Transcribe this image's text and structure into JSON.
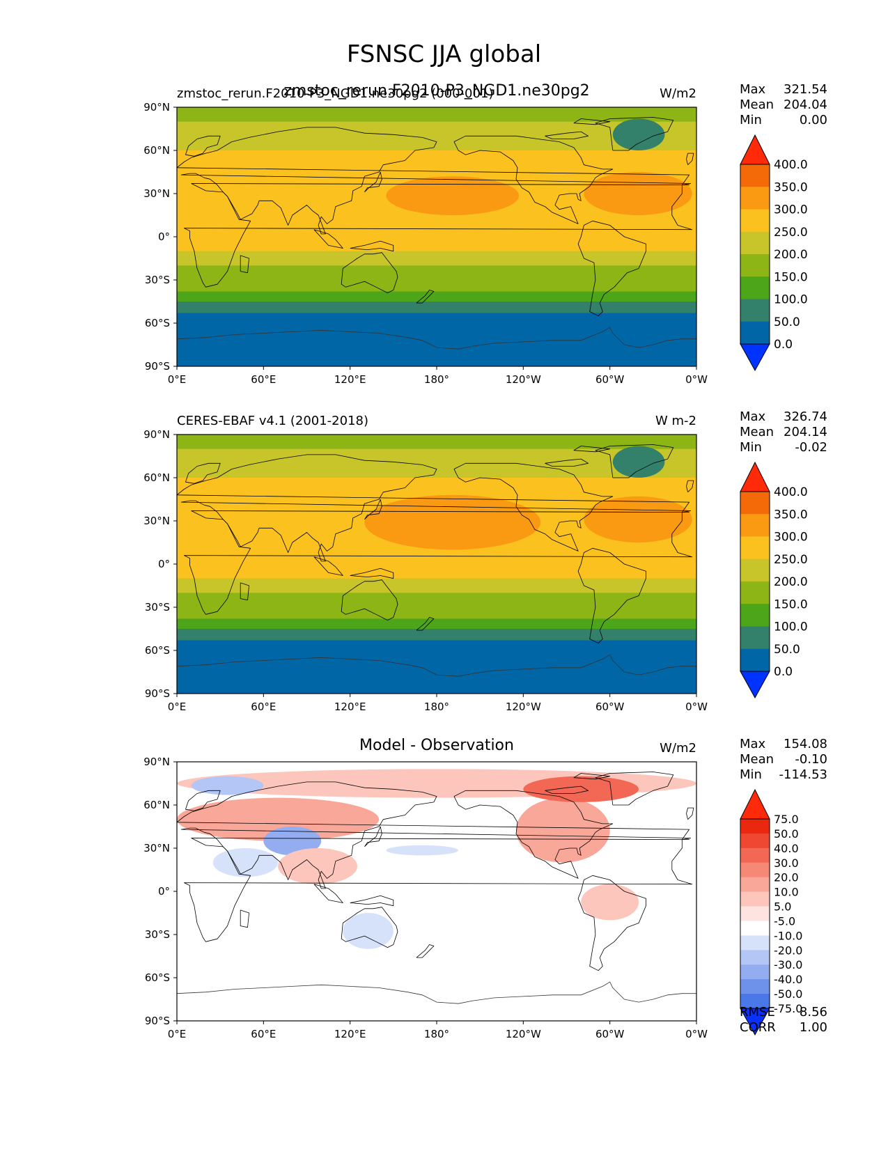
{
  "figure": {
    "title": "FSNSC JJA global"
  },
  "colors": {
    "field_levels": [
      "#0033ff",
      "#0066a6",
      "#33806b",
      "#4da619",
      "#8db515",
      "#c7c52a",
      "#fbc11f",
      "#fa9912",
      "#f56a08",
      "#ff2a0a"
    ],
    "diff_levels": [
      "#0a30ff",
      "#2654f2",
      "#4a78e8",
      "#6e92ea",
      "#93adf0",
      "#b4c6f5",
      "#d6e1fa",
      "#ffffff",
      "#fde4e0",
      "#fcc6bc",
      "#f9a798",
      "#f68876",
      "#f26855",
      "#ee4832",
      "#e9280f",
      "#ff2a0a"
    ],
    "coastline": "#000000",
    "antarctic_line": "#333333"
  },
  "axes": {
    "lat_ticks": [
      "90°N",
      "60°N",
      "30°N",
      "0°",
      "30°S",
      "60°S",
      "90°S"
    ],
    "lon_ticks": [
      "0°E",
      "60°E",
      "120°E",
      "180°",
      "120°W",
      "60°W",
      "0°W"
    ]
  },
  "panels": [
    {
      "left_title": "zmstoc_rerun.F2010-P3_NGD1.ne30pg2 (000-001)",
      "center_title": "zmstoc_rerun.F2010-P3_NGD1.ne30pg2",
      "units": "W/m2",
      "stats": {
        "max_label": "Max",
        "max": "321.54",
        "mean_label": "Mean",
        "mean": "204.04",
        "min_label": "Min",
        "min": "0.00"
      },
      "colorbar_labels": [
        "400.0",
        "350.0",
        "300.0",
        "250.0",
        "200.0",
        "150.0",
        "100.0",
        "50.0",
        "0.0"
      ]
    },
    {
      "left_title": "CERES-EBAF v4.1 (2001-2018)",
      "center_title": "",
      "units": "W m-2",
      "stats": {
        "max_label": "Max",
        "max": "326.74",
        "mean_label": "Mean",
        "mean": "204.14",
        "min_label": "Min",
        "min": "-0.02"
      },
      "colorbar_labels": [
        "400.0",
        "350.0",
        "300.0",
        "250.0",
        "200.0",
        "150.0",
        "100.0",
        "50.0",
        "0.0"
      ]
    },
    {
      "left_title": "",
      "center_title": "Model - Observation",
      "units": "W/m2",
      "stats": {
        "max_label": "Max",
        "max": "154.08",
        "mean_label": "Mean",
        "mean": "-0.10",
        "min_label": "Min",
        "min": "-114.53"
      },
      "colorbar_labels": [
        "75.0",
        "50.0",
        "40.0",
        "30.0",
        "20.0",
        "10.0",
        "5.0",
        "-5.0",
        "-10.0",
        "-20.0",
        "-30.0",
        "-40.0",
        "-50.0",
        "-75.0"
      ],
      "rmse_label": "RMSE",
      "rmse": "8.56",
      "corr_label": "CORR",
      "corr": "1.00"
    }
  ],
  "chart_data": [
    {
      "type": "heatmap",
      "title": "zmstoc_rerun.F2010-P3_NGD1.ne30pg2",
      "units": "W/m2",
      "x_range": [
        0,
        360
      ],
      "y_range": [
        -90,
        90
      ],
      "levels": [
        0,
        50,
        100,
        150,
        200,
        250,
        300,
        350,
        400
      ],
      "zonal_bands": [
        {
          "lat": [
            80,
            90
          ],
          "value": 160
        },
        {
          "lat": [
            60,
            80
          ],
          "value": 240
        },
        {
          "lat": [
            10,
            60
          ],
          "value": 270
        },
        {
          "lat": [
            -10,
            10
          ],
          "value": 270
        },
        {
          "lat": [
            -20,
            -10
          ],
          "value": 225
        },
        {
          "lat": [
            -30,
            -20
          ],
          "value": 190
        },
        {
          "lat": [
            -38,
            -30
          ],
          "value": 160
        },
        {
          "lat": [
            -45,
            -38
          ],
          "value": 130
        },
        {
          "lat": [
            -53,
            -45
          ],
          "value": 95
        },
        {
          "lat": [
            -83,
            -53
          ],
          "value": 45
        },
        {
          "lat": [
            -90,
            -83
          ],
          "value": 10
        }
      ],
      "features": [
        {
          "name": "North Pacific",
          "lon": [
            145,
            237
          ],
          "lat": [
            15,
            42
          ],
          "value": 320
        },
        {
          "name": "North Atlantic",
          "lon": [
            282,
            357
          ],
          "lat": [
            15,
            45
          ],
          "value": 320
        },
        {
          "name": "Greenland",
          "lon": [
            302,
            338
          ],
          "lat": [
            60,
            82
          ],
          "value": 90
        }
      ],
      "stats": {
        "max": 321.54,
        "mean": 204.04,
        "min": 0.0
      }
    },
    {
      "type": "heatmap",
      "title": "CERES-EBAF v4.1 (2001-2018)",
      "units": "W m-2",
      "x_range": [
        0,
        360
      ],
      "y_range": [
        -90,
        90
      ],
      "levels": [
        0,
        50,
        100,
        150,
        200,
        250,
        300,
        350,
        400
      ],
      "zonal_bands": [
        {
          "lat": [
            80,
            90
          ],
          "value": 160
        },
        {
          "lat": [
            60,
            80
          ],
          "value": 240
        },
        {
          "lat": [
            10,
            60
          ],
          "value": 270
        },
        {
          "lat": [
            -10,
            10
          ],
          "value": 270
        },
        {
          "lat": [
            -20,
            -10
          ],
          "value": 225
        },
        {
          "lat": [
            -30,
            -20
          ],
          "value": 190
        },
        {
          "lat": [
            -38,
            -30
          ],
          "value": 160
        },
        {
          "lat": [
            -45,
            -38
          ],
          "value": 130
        },
        {
          "lat": [
            -53,
            -45
          ],
          "value": 95
        },
        {
          "lat": [
            -83,
            -53
          ],
          "value": 45
        },
        {
          "lat": [
            -90,
            -83
          ],
          "value": 10
        }
      ],
      "features": [
        {
          "name": "North Pacific",
          "lon": [
            130,
            252
          ],
          "lat": [
            10,
            48
          ],
          "value": 320
        },
        {
          "name": "North Atlantic",
          "lon": [
            282,
            357
          ],
          "lat": [
            15,
            47
          ],
          "value": 320
        },
        {
          "name": "Greenland",
          "lon": [
            302,
            338
          ],
          "lat": [
            60,
            82
          ],
          "value": 90
        }
      ],
      "stats": {
        "max": 326.74,
        "mean": 204.14,
        "min": -0.02
      }
    },
    {
      "type": "heatmap",
      "title": "Model - Observation",
      "units": "W/m2",
      "x_range": [
        0,
        360
      ],
      "y_range": [
        -90,
        90
      ],
      "levels": [
        -75,
        -50,
        -40,
        -30,
        -20,
        -10,
        -5,
        5,
        10,
        20,
        30,
        40,
        50,
        75
      ],
      "background_value": 0,
      "features": [
        {
          "name": "Arctic coast band",
          "lon": [
            0,
            360
          ],
          "lat": [
            65,
            85
          ],
          "value": 15
        },
        {
          "name": "Eurasia",
          "lon": [
            0,
            140
          ],
          "lat": [
            35,
            65
          ],
          "value": 20
        },
        {
          "name": "Tibetan Plateau",
          "lon": [
            60,
            100
          ],
          "lat": [
            25,
            45
          ],
          "value": -25
        },
        {
          "name": "Arabia",
          "lon": [
            25,
            70
          ],
          "lat": [
            10,
            30
          ],
          "value": -10
        },
        {
          "name": "Siberia",
          "lon": [
            10,
            60
          ],
          "lat": [
            67,
            80
          ],
          "value": -15
        },
        {
          "name": "North America",
          "lon": [
            235,
            300
          ],
          "lat": [
            20,
            65
          ],
          "value": 25
        },
        {
          "name": "Canadian Arctic",
          "lon": [
            240,
            320
          ],
          "lat": [
            62,
            80
          ],
          "value": 45
        },
        {
          "name": "South America",
          "lon": [
            280,
            320
          ],
          "lat": [
            -20,
            5
          ],
          "value": 15
        },
        {
          "name": "India and SE Asia",
          "lon": [
            70,
            125
          ],
          "lat": [
            5,
            30
          ],
          "value": 15
        },
        {
          "name": "Australia",
          "lon": [
            115,
            150
          ],
          "lat": [
            -40,
            -15
          ],
          "value": -8
        },
        {
          "name": "Central Pacific",
          "lon": [
            145,
            195
          ],
          "lat": [
            25,
            32
          ],
          "value": -7
        }
      ],
      "stats": {
        "max": 154.08,
        "mean": -0.1,
        "min": -114.53,
        "rmse": 8.56,
        "corr": 1.0
      }
    }
  ]
}
